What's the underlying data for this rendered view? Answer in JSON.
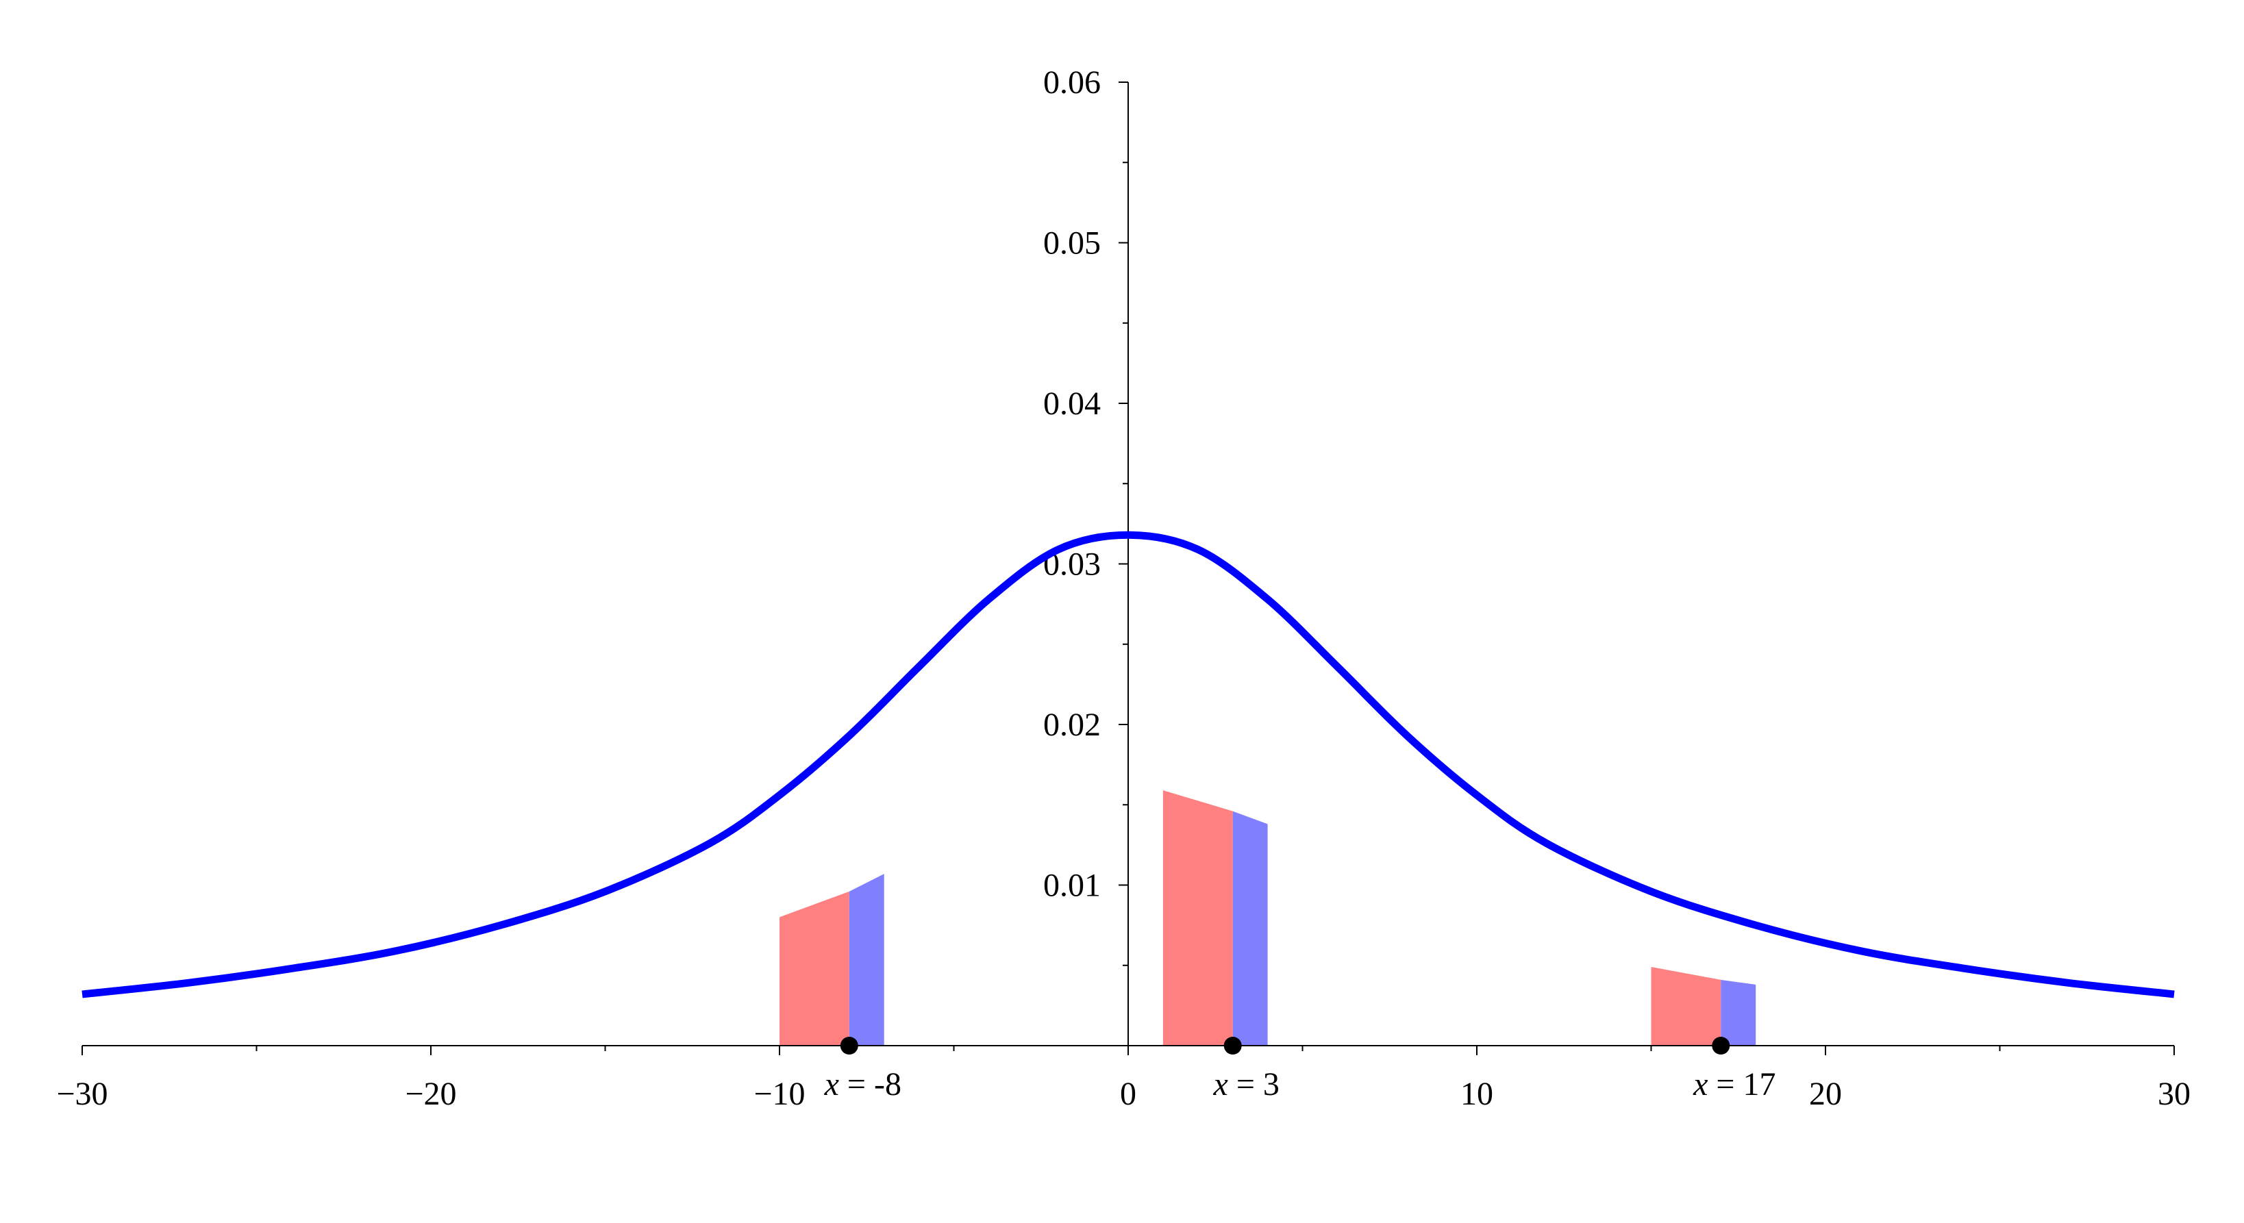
{
  "chart_data": {
    "type": "line",
    "title": "",
    "xlabel": "",
    "ylabel": "",
    "xlim": [
      -30,
      30
    ],
    "ylim": [
      0,
      0.06
    ],
    "grid": false,
    "x_ticks": [
      -30,
      -20,
      -10,
      0,
      10,
      20,
      30
    ],
    "x_tick_labels": [
      "−30",
      "−20",
      "−10",
      "0",
      "10",
      "20",
      "30"
    ],
    "y_ticks": [
      0.01,
      0.02,
      0.03,
      0.04,
      0.05,
      0.06
    ],
    "y_tick_labels": [
      "0.01",
      "0.02",
      "0.03",
      "0.04",
      "0.05",
      "0.06"
    ],
    "series": [
      {
        "kind": "curve",
        "color": "#0000ff",
        "x": [
          -30,
          -27,
          -24,
          -21,
          -18,
          -15,
          -12,
          -10,
          -8,
          -6,
          -4,
          -2,
          0,
          2,
          4,
          6,
          8,
          10,
          12,
          15,
          18,
          21,
          24,
          27,
          30
        ],
        "y": [
          0.0032,
          0.0039,
          0.0048,
          0.0059,
          0.0075,
          0.0096,
          0.0126,
          0.0156,
          0.0193,
          0.0236,
          0.0278,
          0.0309,
          0.0318,
          0.0309,
          0.0278,
          0.0236,
          0.0193,
          0.0156,
          0.0126,
          0.0096,
          0.0075,
          0.0059,
          0.0048,
          0.0039,
          0.0032
        ]
      }
    ],
    "shaded_regions": [
      {
        "point": -8,
        "label_var": "x",
        "label_rest": " = -8",
        "red": {
          "x_start": -10,
          "x_end": -8,
          "y_start": 0.008,
          "y_end": 0.0096
        },
        "blue": {
          "x_start": -8,
          "x_end": -7,
          "y_start": 0.0096,
          "y_end": 0.0107
        }
      },
      {
        "point": 3,
        "label_var": "x",
        "label_rest": " = 3",
        "red": {
          "x_start": 1,
          "x_end": 3,
          "y_start": 0.0159,
          "y_end": 0.0146
        },
        "blue": {
          "x_start": 3,
          "x_end": 4,
          "y_start": 0.0146,
          "y_end": 0.0138
        }
      },
      {
        "point": 17,
        "label_var": "x",
        "label_rest": " = 17",
        "red": {
          "x_start": 15,
          "x_end": 17,
          "y_start": 0.0049,
          "y_end": 0.0041
        },
        "blue": {
          "x_start": 17,
          "x_end": 18,
          "y_start": 0.0041,
          "y_end": 0.0038
        }
      }
    ],
    "colors": {
      "curve": "#0000ff",
      "red_fill": "#ff8080",
      "blue_fill": "#8080ff",
      "axis": "#000000",
      "point": "#000000"
    }
  }
}
